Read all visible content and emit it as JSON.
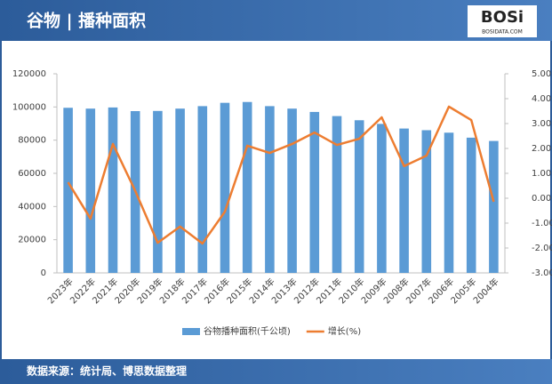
{
  "logo": {
    "name": "BOSi",
    "site": "BOSIDATA.COM"
  },
  "chart_data": {
    "type": "bar",
    "title": "谷物 | 播种面积",
    "source": "数据来源：统计局、博思数据整理",
    "categories": [
      "2023年",
      "2022年",
      "2021年",
      "2020年",
      "2019年",
      "2018年",
      "2017年",
      "2016年",
      "2015年",
      "2014年",
      "2013年",
      "2012年",
      "2011年",
      "2010年",
      "2009年",
      "2008年",
      "2007年",
      "2006年",
      "2005年",
      "2004年"
    ],
    "series": [
      {
        "name": "谷物播种面积(千公顷)",
        "type": "bar",
        "color": "#5b9bd5",
        "values": [
          99500,
          99000,
          99700,
          97500,
          97600,
          99000,
          100500,
          102500,
          103000,
          100500,
          99000,
          97000,
          94500,
          92000,
          89800,
          87000,
          86000,
          84500,
          81500,
          79500
        ]
      },
      {
        "name": "增长(%)",
        "type": "line",
        "axis": "y2",
        "color": "#ed7d31",
        "values": [
          0.64,
          -0.82,
          2.18,
          0.29,
          -1.79,
          -1.14,
          -1.82,
          -0.54,
          2.11,
          1.82,
          2.18,
          2.64,
          2.14,
          2.39,
          3.25,
          1.29,
          1.71,
          3.68,
          3.14,
          -0.14
        ]
      }
    ],
    "ylim": [
      0,
      120000
    ],
    "yticks": [
      0,
      20000,
      40000,
      60000,
      80000,
      100000,
      120000
    ],
    "y2lim": [
      -3,
      5
    ],
    "y2ticks": [
      {
        "value": -3,
        "label": "-3.00"
      },
      {
        "value": -2,
        "label": "-2.00"
      },
      {
        "value": -1,
        "label": "-1.00"
      },
      {
        "value": 0,
        "label": "0.00"
      },
      {
        "value": 1,
        "label": "1.00"
      },
      {
        "value": 2,
        "label": "2.00"
      },
      {
        "value": 3,
        "label": "3.00"
      },
      {
        "value": 4,
        "label": "4.00"
      },
      {
        "value": 5,
        "label": "5.00"
      }
    ],
    "legend": "bottom"
  }
}
